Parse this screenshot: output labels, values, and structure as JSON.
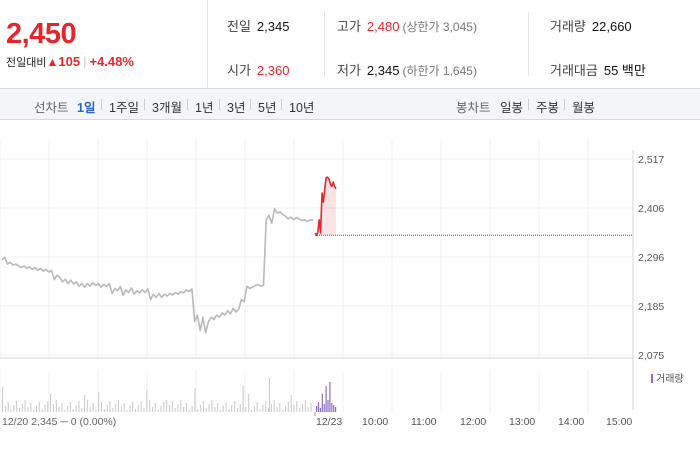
{
  "quote": {
    "price": "2,450",
    "change_label": "전일대비",
    "change_arrow": "▲",
    "change_value": "105",
    "change_pct": "+4.48%",
    "up_color": "#e4262d"
  },
  "stats": {
    "prev_close": {
      "label": "전일",
      "value": "2,345"
    },
    "high": {
      "label": "고가",
      "value": "2,480",
      "sub": "(상한가 3,045)"
    },
    "volume": {
      "label": "거래량",
      "value": "22,660"
    },
    "open": {
      "label": "시가",
      "value": "2,360"
    },
    "low": {
      "label": "저가",
      "value": "2,345",
      "sub": "(하한가 1,645)"
    },
    "amount": {
      "label": "거래대금",
      "value": "55 백만"
    }
  },
  "tabs": {
    "line_label": "선차트",
    "line_periods": [
      "1일",
      "1주일",
      "3개월",
      "1년",
      "3년",
      "5년",
      "10년"
    ],
    "line_active": "1일",
    "candle_label": "봉차트",
    "candle_periods": [
      "일봉",
      "주봉",
      "월봉"
    ]
  },
  "chart_data": {
    "type": "line",
    "y_ticks": [
      "2,517",
      "2,406",
      "2,296",
      "2,185",
      "2,075"
    ],
    "ylim": [
      2075,
      2517
    ],
    "x_ticks": [
      "12/20",
      "12/23",
      "10:00",
      "11:00",
      "12:00",
      "13:00",
      "14:00",
      "15:00"
    ],
    "prev_day_label": "12/20  2,345 ─ 0 (0.00%)",
    "prev_close": 2345,
    "volume_legend": "거래량",
    "prev_day_color": "#b9b9b9",
    "today_color": "#e4262d",
    "volume_today_color": "#8a6cc6",
    "grid": true,
    "series": [
      {
        "values": [
          2290,
          2295,
          2280,
          2284,
          2278,
          2280,
          2276,
          2272,
          2276,
          2270,
          2274,
          2268,
          2272,
          2266,
          2270,
          2264,
          2268,
          2262,
          2266,
          2245,
          2255,
          2250,
          2240,
          2246,
          2236,
          2244,
          2235,
          2240,
          2230,
          2236,
          2228,
          2236,
          2230,
          2238,
          2232,
          2236,
          2228,
          2234,
          2230,
          2236,
          2214,
          2225,
          2220,
          2230,
          2210,
          2222,
          2216,
          2226,
          2212,
          2220,
          2215,
          2222,
          2216,
          2224,
          2200,
          2212,
          2205,
          2214,
          2205,
          2212,
          2208,
          2214,
          2210,
          2216,
          2212,
          2218,
          2215,
          2222,
          2218,
          2224,
          2150,
          2165,
          2130,
          2160,
          2125,
          2150,
          2160,
          2155,
          2165,
          2160,
          2170,
          2165,
          2175,
          2168,
          2180,
          2172,
          2178,
          2200,
          2195,
          2230,
          2225,
          2228,
          2232,
          2234,
          2230,
          2232,
          2380,
          2390,
          2372,
          2405,
          2395,
          2398,
          2392,
          2388,
          2382,
          2386,
          2380,
          2385,
          2382,
          2378,
          2380,
          2376,
          2380,
          2379
        ]
      },
      {
        "values": [
          2350,
          2345,
          2352,
          2380,
          2350,
          2440,
          2420,
          2450,
          2475,
          2476,
          2472,
          2460,
          2455,
          2465,
          2455,
          2450
        ]
      }
    ]
  }
}
